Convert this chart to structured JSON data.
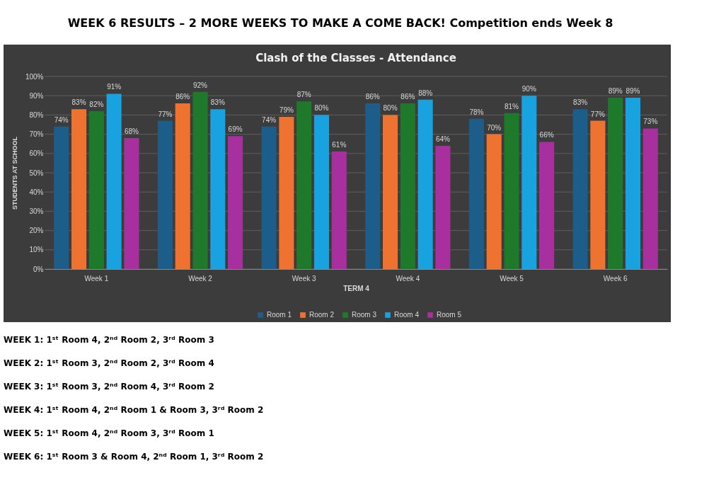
{
  "chart_data": {
    "type": "bar",
    "title": "WEEK 6 RESULTS – 2 MORE WEEKS TO MAKE A COME BACK! Competition ends Week 8",
    "subtitle": "Clash of the Classes - Attendance",
    "xlabel": "TERM 4",
    "ylabel": "STUDENTS AT SCHOOL",
    "categories": [
      "Week 1",
      "Week  2",
      "Week 3",
      "Week 4",
      "Week 5",
      "Week 6"
    ],
    "series": [
      {
        "name": "Room 1",
        "color": "#1d5d8a",
        "values": [
          74,
          77,
          74,
          86,
          78,
          83
        ],
        "value_labels": [
          "74%",
          "77%",
          "74%",
          "86%",
          "78%",
          "83%"
        ]
      },
      {
        "name": "Room 2",
        "color": "#ee7330",
        "values": [
          83,
          86,
          79,
          80,
          70,
          77
        ],
        "value_labels": [
          "83%",
          "86%",
          "79%",
          "80%",
          "70%",
          "77%"
        ]
      },
      {
        "name": "Room 3",
        "color": "#1e7a2a",
        "values": [
          82,
          92,
          87,
          86,
          81,
          89
        ],
        "value_labels": [
          "82%",
          "92%",
          "87%",
          "86%",
          "81%",
          "89%"
        ]
      },
      {
        "name": "Room 4",
        "color": "#19a2e0",
        "values": [
          91,
          83,
          80,
          88,
          90,
          89
        ],
        "value_labels": [
          "91%",
          "83%",
          "80%",
          "88%",
          "90%",
          "89%"
        ]
      },
      {
        "name": "Room 5",
        "color": "#a8309e",
        "values": [
          68,
          69,
          61,
          64,
          66,
          73
        ],
        "value_labels": [
          "68%",
          "69%",
          "61%",
          "64%",
          "66%",
          "73%"
        ]
      }
    ],
    "ylim": [
      0,
      100
    ],
    "yticks": [
      {
        "value": 0,
        "label": "0%"
      },
      {
        "value": 10,
        "label": "10%"
      },
      {
        "value": 20,
        "label": "20%"
      },
      {
        "value": 30,
        "label": "30%"
      },
      {
        "value": 40,
        "label": "40%"
      },
      {
        "value": 50,
        "label": "50%"
      },
      {
        "value": 60,
        "label": "60%"
      },
      {
        "value": 70,
        "label": "70%"
      },
      {
        "value": 80,
        "label": "80%"
      },
      {
        "value": 90,
        "label": "90%"
      },
      {
        "value": 100,
        "label": "100%"
      }
    ],
    "grid": "y",
    "legend": "bottom",
    "annotations": [
      "WEEK 1: 1ˢᵗ Room 4, 2ⁿᵈ Room 2, 3ʳᵈ Room 3",
      "WEEK 2: 1ˢᵗ Room 3, 2ⁿᵈ Room 2, 3ʳᵈ Room 4",
      "WEEK 3: 1ˢᵗ Room 3, 2ⁿᵈ Room 4, 3ʳᵈ Room 2",
      "WEEK 4: 1ˢᵗ Room 4, 2ⁿᵈ Room 1 & Room 3, 3ʳᵈ Room 2",
      "WEEK 5: 1ˢᵗ Room 4, 2ⁿᵈ Room 3, 3ʳᵈ Room 1",
      "WEEK 6: 1ˢᵗ Room 3 & Room 4, 2ⁿᵈ Room 1, 3ʳᵈ Room 2"
    ]
  }
}
